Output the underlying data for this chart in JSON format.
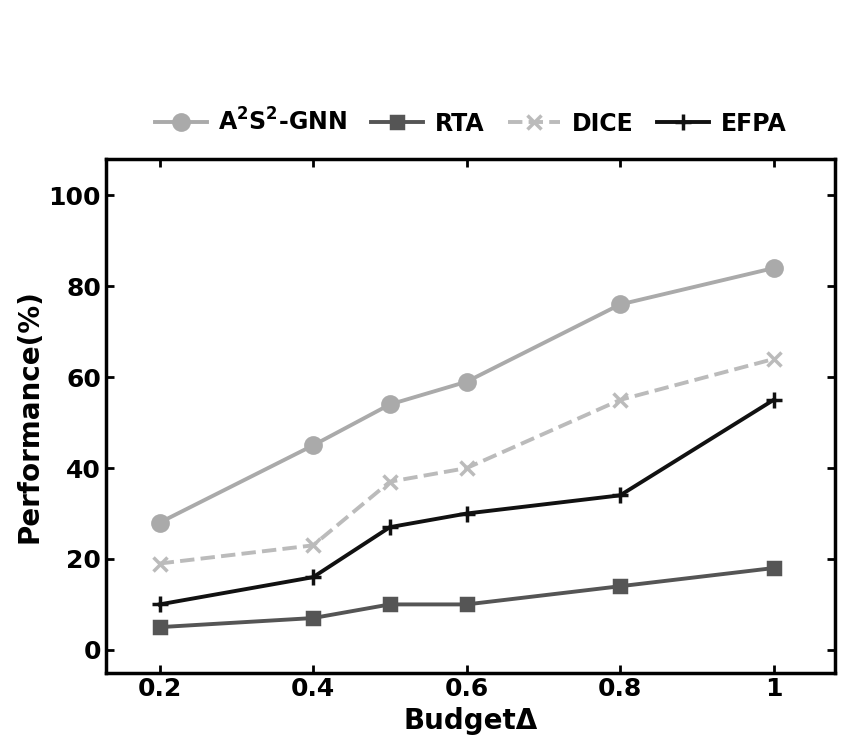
{
  "x": [
    0.2,
    0.4,
    0.5,
    0.6,
    0.8,
    1.0
  ],
  "series": {
    "A2S2_GNN": {
      "label": "$\\mathbf{A^2S^2}$–GNN",
      "values": [
        28,
        45,
        54,
        59,
        76,
        84
      ],
      "color": "#aaaaaa",
      "linestyle": "-",
      "marker": "o",
      "markersize": 11,
      "linewidth": 2.8,
      "zorder": 3
    },
    "RTA": {
      "label": "RTA",
      "values": [
        5,
        7,
        10,
        10,
        14,
        18
      ],
      "color": "#555555",
      "linestyle": "-",
      "marker": "s",
      "markersize": 9,
      "linewidth": 2.8,
      "zorder": 3
    },
    "DICE": {
      "label": "DICE",
      "values": [
        19,
        23,
        37,
        40,
        55,
        64
      ],
      "color": "#bbbbbb",
      "linestyle": "--",
      "marker": "x",
      "markersize": 10,
      "linewidth": 2.8,
      "zorder": 3
    },
    "EFPA": {
      "label": "EFPA",
      "values": [
        10,
        16,
        27,
        30,
        34,
        55
      ],
      "color": "#111111",
      "linestyle": "-",
      "marker": "+",
      "markersize": 11,
      "linewidth": 2.8,
      "zorder": 3
    }
  },
  "xlabel": "BudgetΔ",
  "ylabel": "Performance(%)",
  "xlim": [
    0.13,
    1.08
  ],
  "ylim": [
    -5,
    108
  ],
  "yticks": [
    0,
    20,
    40,
    60,
    80,
    100
  ],
  "xticks": [
    0.2,
    0.4,
    0.6,
    0.8,
    1.0
  ],
  "xtick_labels": [
    "0.2",
    "0.4",
    "0.6",
    "0.8",
    "1"
  ],
  "axis_fontsize": 20,
  "tick_fontsize": 18,
  "legend_fontsize": 17,
  "background_color": "#ffffff",
  "grid": false,
  "figsize": [
    8.5,
    7.5
  ],
  "dpi": 100
}
